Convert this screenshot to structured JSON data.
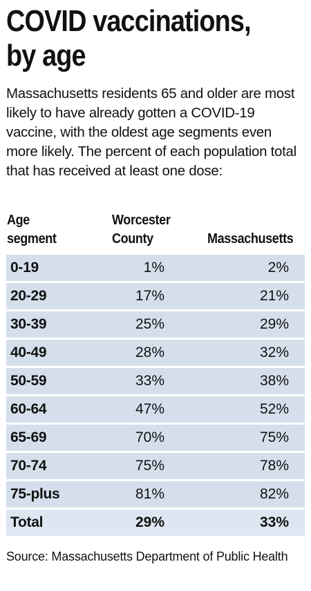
{
  "title_line1": "COVID vaccinations,",
  "title_line2": "by age",
  "subtitle": "Massachusetts residents 65 and older are most likely to have already gotten a COVID-19 vaccine, with the oldest age segments even more likely. The percent of each population total that has received at least one dose:",
  "source": "Source: Massachusetts Department of Public Health",
  "chart_data": {
    "type": "table",
    "title": "COVID vaccinations, by age",
    "columns": {
      "segment_line1": "Age",
      "segment_line2": "segment",
      "worcester_line1": "Worcester",
      "worcester_line2": "County",
      "massachusetts": "Massachusetts"
    },
    "rows": [
      {
        "segment": "0-19",
        "worcester": "1%",
        "massachusetts": "2%"
      },
      {
        "segment": "20-29",
        "worcester": "17%",
        "massachusetts": "21%"
      },
      {
        "segment": "30-39",
        "worcester": "25%",
        "massachusetts": "29%"
      },
      {
        "segment": "40-49",
        "worcester": "28%",
        "massachusetts": "32%"
      },
      {
        "segment": "50-59",
        "worcester": "33%",
        "massachusetts": "38%"
      },
      {
        "segment": "60-64",
        "worcester": "47%",
        "massachusetts": "52%"
      },
      {
        "segment": "65-69",
        "worcester": "70%",
        "massachusetts": "75%"
      },
      {
        "segment": "70-74",
        "worcester": "75%",
        "massachusetts": "78%"
      },
      {
        "segment": "75-plus",
        "worcester": "81%",
        "massachusetts": "82%"
      }
    ],
    "total": {
      "segment": "Total",
      "worcester": "29%",
      "massachusetts": "33%"
    },
    "colors": {
      "row_background": "#d5dfec",
      "text": "#111111"
    }
  }
}
